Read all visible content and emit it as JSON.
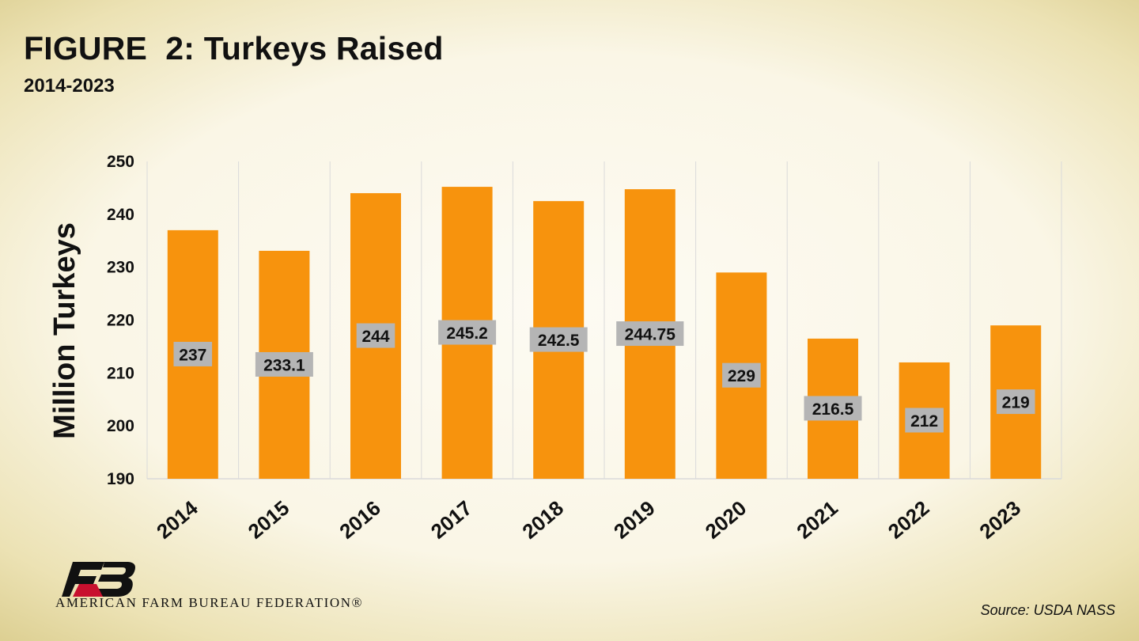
{
  "page": {
    "title": "FIGURE  2: Turkeys Raised",
    "subtitle": "2014-2023",
    "source": "Source: USDA NASS",
    "org_name": "AMERICAN FARM BUREAU FEDERATION®",
    "logo_text": "FB"
  },
  "colors": {
    "bar": "#f7930d",
    "label_box": "#b5b5b5",
    "grid": "#dadada",
    "logo_black": "#111111",
    "logo_red": "#c8102e"
  },
  "chart_data": {
    "type": "bar",
    "title": "FIGURE  2: Turkeys Raised",
    "subtitle": "2014-2023",
    "xlabel": "",
    "ylabel": "Million Turkeys",
    "categories": [
      "2014",
      "2015",
      "2016",
      "2017",
      "2018",
      "2019",
      "2020",
      "2021",
      "2022",
      "2023"
    ],
    "values": [
      237,
      233.1,
      244,
      245.2,
      242.5,
      244.75,
      229,
      216.5,
      212,
      219
    ],
    "data_labels": [
      "237",
      "233.1",
      "244",
      "245.2",
      "242.5",
      "244.75",
      "229",
      "216.5",
      "212",
      "219"
    ],
    "ylim": [
      190,
      250
    ],
    "yticks": [
      190,
      200,
      210,
      220,
      230,
      240,
      250
    ],
    "grid": "vertical",
    "legend": "none"
  }
}
